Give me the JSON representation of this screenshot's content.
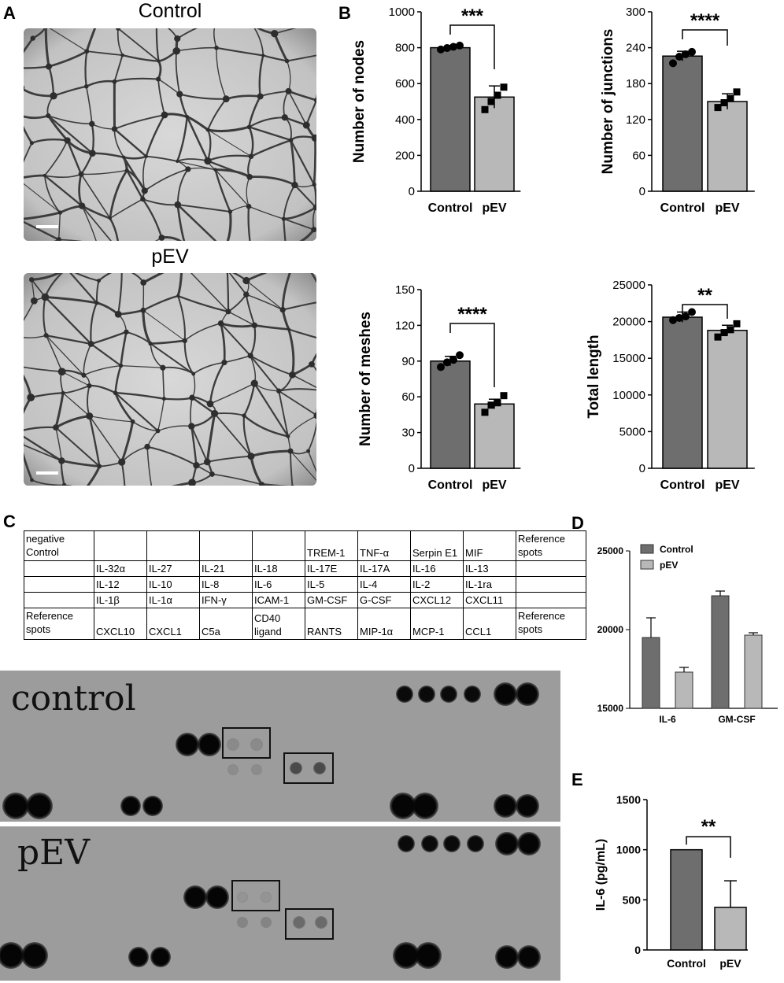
{
  "panels": {
    "A": "A",
    "B": "B",
    "C": "C",
    "D": "D",
    "E": "E"
  },
  "micro": {
    "top_title": "Control",
    "bottom_title": "pEV"
  },
  "colors": {
    "dark_bar": "#6e6e6e",
    "light_bar": "#b8b8b8",
    "blot_bg": "#9c9c9c"
  },
  "array_table": [
    [
      "negative Control",
      "",
      "",
      "",
      "",
      "TREM-1",
      "TNF-α",
      "Serpin E1",
      "MIF",
      "Reference spots"
    ],
    [
      "",
      "IL-32α",
      "IL-27",
      "IL-21",
      "IL-18",
      "IL-17E",
      "IL-17A",
      "IL-16",
      "IL-13",
      ""
    ],
    [
      "",
      "IL-12",
      "IL-10",
      "IL-8",
      "IL-6",
      "IL-5",
      "IL-4",
      "IL-2",
      "IL-1ra",
      ""
    ],
    [
      "",
      "IL-1β",
      "IL-1α",
      "IFN-γ",
      "ICAM-1",
      "GM-CSF",
      "G-CSF",
      "CXCL12",
      "CXCL11",
      ""
    ],
    [
      "Reference spots",
      "CXCL10",
      "CXCL1",
      "C5a",
      "CD40 ligand",
      "RANTS",
      "MIP-1α",
      "MCP-1",
      "CCL1",
      "Reference spots"
    ]
  ],
  "blots": {
    "top_label": "control",
    "bottom_label": "pEV"
  },
  "chart_data": [
    {
      "id": "nodes",
      "type": "bar",
      "categories": [
        "Control",
        "pEV"
      ],
      "values": [
        800,
        525
      ],
      "errors": [
        12,
        62
      ],
      "points": [
        [
          790,
          798,
          805,
          812
        ],
        [
          455,
          500,
          535,
          580
        ]
      ],
      "ylabel": "Number of nodes",
      "ylim": [
        0,
        1000
      ],
      "yticks": [
        0,
        200,
        400,
        600,
        800,
        1000
      ],
      "significance": "***"
    },
    {
      "id": "junctions",
      "type": "bar",
      "categories": [
        "Control",
        "pEV"
      ],
      "values": [
        226,
        150
      ],
      "errors": [
        8,
        13
      ],
      "points": [
        [
          214,
          225,
          229,
          233
        ],
        [
          140,
          148,
          155,
          166
        ]
      ],
      "ylabel": "Number of junctions",
      "ylim": [
        0,
        300
      ],
      "yticks": [
        0,
        60,
        120,
        180,
        240,
        300
      ],
      "significance": "****"
    },
    {
      "id": "meshes",
      "type": "bar",
      "categories": [
        "Control",
        "pEV"
      ],
      "values": [
        90,
        54
      ],
      "errors": [
        4,
        4
      ],
      "points": [
        [
          85,
          89,
          91,
          95
        ],
        [
          47,
          53,
          55,
          61
        ]
      ],
      "ylabel": "Number of meshes",
      "ylim": [
        0,
        150
      ],
      "yticks": [
        0,
        30,
        60,
        90,
        120,
        150
      ],
      "significance": "****"
    },
    {
      "id": "length",
      "type": "bar",
      "categories": [
        "Control",
        "pEV"
      ],
      "values": [
        20600,
        18800
      ],
      "errors": [
        700,
        700
      ],
      "points": [
        [
          20200,
          20500,
          20700,
          21300
        ],
        [
          17900,
          18500,
          18900,
          19700
        ]
      ],
      "ylabel": "Total length",
      "ylim": [
        0,
        25000
      ],
      "yticks": [
        0,
        5000,
        10000,
        15000,
        20000,
        25000
      ],
      "significance": "**"
    },
    {
      "id": "array_density",
      "type": "bar",
      "categories": [
        "IL-6",
        "GM-CSF"
      ],
      "series": [
        {
          "name": "Control",
          "values": [
            19500,
            22150
          ],
          "errors": [
            1250,
            300
          ]
        },
        {
          "name": "pEV",
          "values": [
            17300,
            19650
          ],
          "errors": [
            300,
            150
          ]
        }
      ],
      "ylim": [
        15000,
        25000
      ],
      "yticks": [
        15000,
        20000,
        25000
      ],
      "legend": "top-left"
    },
    {
      "id": "il6",
      "type": "bar",
      "categories": [
        "Control",
        "pEV"
      ],
      "values": [
        1000,
        425
      ],
      "errors": [
        0,
        265
      ],
      "ylabel": "IL-6 (pg/mL)",
      "ylim": [
        0,
        1500
      ],
      "yticks": [
        0,
        500,
        1000,
        1500
      ],
      "significance": "**"
    }
  ]
}
